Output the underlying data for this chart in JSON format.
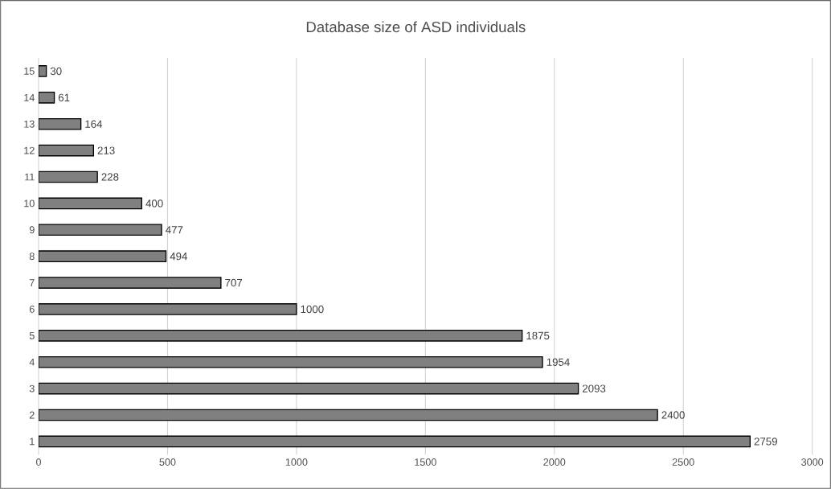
{
  "chart_data": {
    "type": "bar",
    "orientation": "horizontal",
    "title": "Database size of ASD individuals",
    "categories": [
      "15",
      "14",
      "13",
      "12",
      "11",
      "10",
      "9",
      "8",
      "7",
      "6",
      "5",
      "4",
      "3",
      "2",
      "1"
    ],
    "values": [
      30,
      61,
      164,
      213,
      228,
      400,
      477,
      494,
      707,
      1000,
      1875,
      1954,
      2093,
      2400,
      2759
    ],
    "color": "#808080",
    "xlim": [
      0,
      3000
    ],
    "xticks": [
      0,
      500,
      1000,
      1500,
      2000,
      2500,
      3000
    ],
    "grid": "x",
    "data_labels": true
  }
}
